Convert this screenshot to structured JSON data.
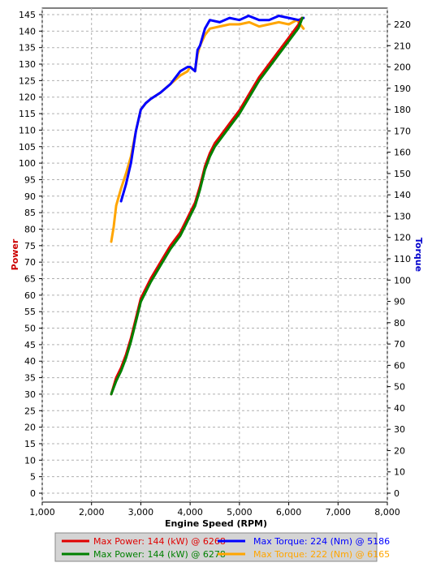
{
  "chart_data": {
    "type": "line",
    "xlabel": "Engine Speed (RPM)",
    "ylabel_left": "Power",
    "ylabel_right": "Torque",
    "xlim": [
      1000,
      8000
    ],
    "ylim_left": [
      0,
      145
    ],
    "ylim_right": [
      0,
      225
    ],
    "x_ticks": [
      "1,000",
      "2,000",
      "3,000",
      "4,000",
      "5,000",
      "6,000",
      "7,000",
      "8,000"
    ],
    "y_left_ticks": [
      "0",
      "5",
      "10",
      "15",
      "20",
      "25",
      "30",
      "35",
      "40",
      "45",
      "50",
      "55",
      "60",
      "65",
      "70",
      "75",
      "80",
      "85",
      "90",
      "95",
      "100",
      "105",
      "110",
      "115",
      "120",
      "125",
      "130",
      "135",
      "140",
      "145"
    ],
    "y_right_ticks": [
      "0",
      "10",
      "20",
      "30",
      "40",
      "50",
      "60",
      "70",
      "80",
      "90",
      "100",
      "110",
      "120",
      "130",
      "140",
      "150",
      "160",
      "170",
      "180",
      "190",
      "200",
      "210",
      "220"
    ],
    "grid": true,
    "colors": {
      "power_red": "#e00000",
      "power_green": "#008000",
      "torque_blue": "#0000ff",
      "torque_orange": "#ffa500",
      "ylabel_left": "#cc0000",
      "ylabel_right": "#0000cc"
    },
    "series": [
      {
        "name": "Max Power: 144 (kW) @ 6268",
        "axis": "left",
        "color": "#e00000",
        "x": [
          2400,
          2500,
          2600,
          2700,
          2800,
          2900,
          3000,
          3200,
          3400,
          3600,
          3800,
          3900,
          4000,
          4100,
          4200,
          4300,
          4400,
          4500,
          4600,
          4800,
          5000,
          5200,
          5400,
          5600,
          5800,
          6000,
          6200,
          6268
        ],
        "y": [
          30,
          35,
          38,
          42,
          47,
          53,
          59,
          65,
          70,
          75,
          79,
          82,
          85,
          88,
          93,
          99,
          103,
          106,
          108,
          112,
          116,
          121,
          126,
          130,
          134,
          138,
          142,
          144
        ]
      },
      {
        "name": "Max Power: 144 (kW) @ 6278",
        "axis": "left",
        "color": "#008000",
        "x": [
          2400,
          2500,
          2600,
          2700,
          2800,
          2900,
          3000,
          3200,
          3400,
          3600,
          3800,
          3900,
          4000,
          4100,
          4200,
          4300,
          4400,
          4500,
          4600,
          4800,
          5000,
          5200,
          5400,
          5600,
          5800,
          6000,
          6200,
          6278
        ],
        "y": [
          30,
          34,
          37,
          41,
          46,
          52,
          58,
          64,
          69,
          74,
          78,
          81,
          84,
          87,
          92,
          98,
          102,
          105,
          107,
          111,
          115,
          120,
          125,
          129,
          133,
          137,
          141,
          144
        ]
      },
      {
        "name": "Max Torque: 224 (Nm) @ 5186",
        "axis": "right",
        "color": "#0000ff",
        "x": [
          2600,
          2700,
          2800,
          2900,
          3000,
          3100,
          3200,
          3400,
          3600,
          3800,
          3950,
          4000,
          4100,
          4150,
          4200,
          4300,
          4400,
          4600,
          4800,
          5000,
          5186,
          5400,
          5600,
          5800,
          6000,
          6200,
          6300
        ],
        "y": [
          137,
          145,
          155,
          170,
          180,
          183,
          185,
          188,
          192,
          198,
          200,
          200,
          198,
          208,
          210,
          218,
          222,
          221,
          223,
          222,
          224,
          222,
          222,
          224,
          223,
          222,
          223
        ]
      },
      {
        "name": "Max Torque: 222 (Nm) @ 6165",
        "axis": "right",
        "color": "#ffa500",
        "x": [
          2400,
          2450,
          2500,
          2600,
          2700,
          2800,
          2900,
          3000,
          3100,
          3200,
          3400,
          3600,
          3800,
          3950,
          4000,
          4100,
          4150,
          4200,
          4300,
          4400,
          4600,
          4800,
          5000,
          5200,
          5400,
          5600,
          5800,
          6000,
          6165,
          6300
        ],
        "y": [
          118,
          125,
          135,
          143,
          150,
          158,
          170,
          180,
          183,
          185,
          188,
          192,
          196,
          198,
          200,
          198,
          206,
          210,
          215,
          218,
          219,
          220,
          220,
          221,
          219,
          220,
          221,
          220,
          222,
          218
        ]
      }
    ]
  }
}
